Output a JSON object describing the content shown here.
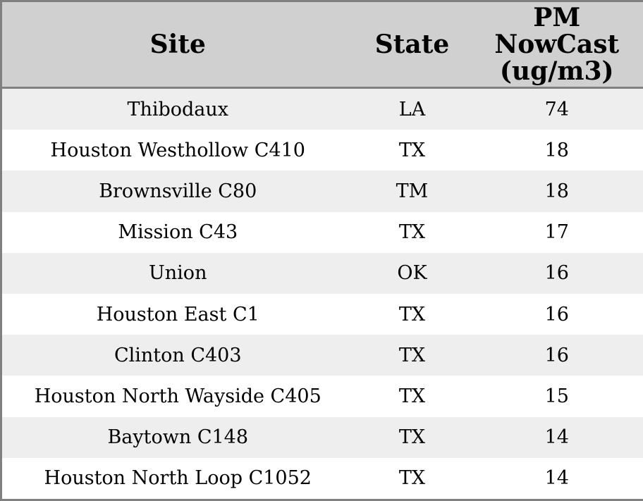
{
  "chart_data": {
    "type": "table",
    "title": "",
    "columns": [
      "Site",
      "State",
      "PM NowCast (ug/m3)"
    ],
    "rows": [
      {
        "site": "Thibodaux",
        "state": "LA",
        "pm_nowcast": 74
      },
      {
        "site": "Houston Westhollow C410",
        "state": "TX",
        "pm_nowcast": 18
      },
      {
        "site": "Brownsville C80",
        "state": "TM",
        "pm_nowcast": 18
      },
      {
        "site": "Mission C43",
        "state": "TX",
        "pm_nowcast": 17
      },
      {
        "site": "Union",
        "state": "OK",
        "pm_nowcast": 16
      },
      {
        "site": "Houston East C1",
        "state": "TX",
        "pm_nowcast": 16
      },
      {
        "site": "Clinton C403",
        "state": "TX",
        "pm_nowcast": 16
      },
      {
        "site": "Houston North Wayside C405",
        "state": "TX",
        "pm_nowcast": 15
      },
      {
        "site": "Baytown C148",
        "state": "TX",
        "pm_nowcast": 14
      },
      {
        "site": "Houston North Loop C1052",
        "state": "TX",
        "pm_nowcast": 14
      }
    ]
  },
  "header": {
    "site": "Site",
    "state": "State",
    "pm_full": "PM NowCast (ug/m3)",
    "pm_lines": [
      "PM",
      "NowCast",
      "(ug/m3)"
    ]
  },
  "colors": {
    "header_bg": "#d0d0d0",
    "row_odd_bg": "#eeeeee",
    "row_even_bg": "#ffffff",
    "border": "#808080",
    "text": "#000000"
  }
}
